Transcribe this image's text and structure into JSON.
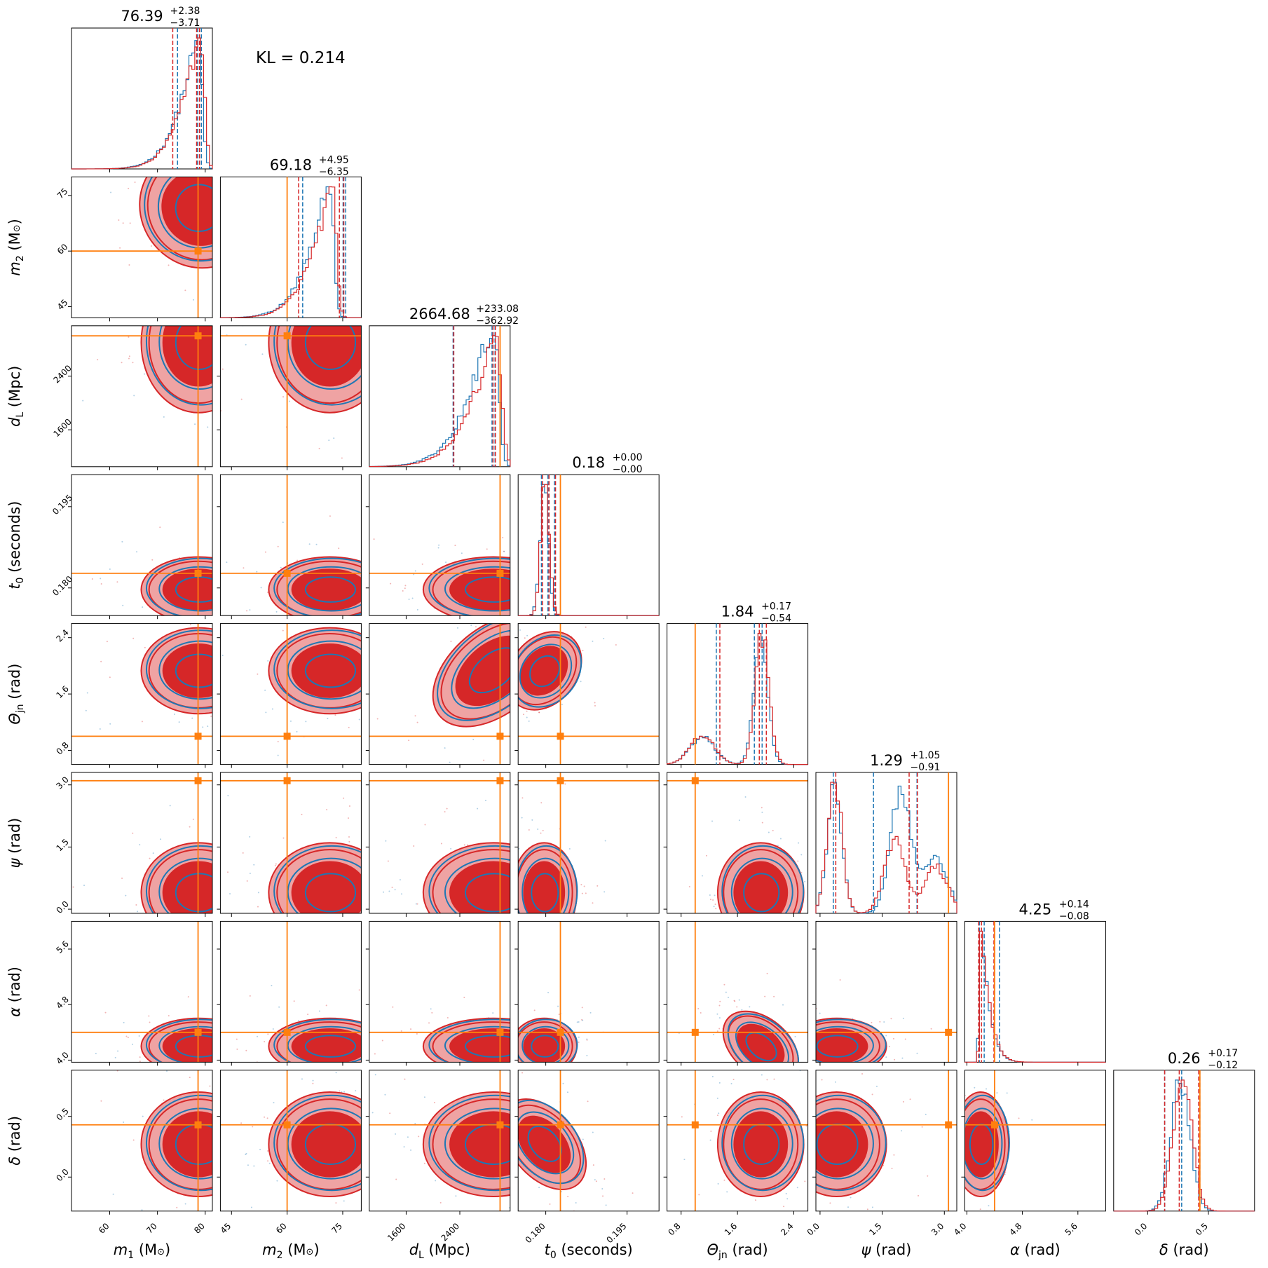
{
  "kl_annotation": "KL = 0.214",
  "colors": {
    "model_a": "#1f77b4",
    "model_b": "#d62728",
    "injection": "#ff7f0e",
    "fill_light": "#efa3a3"
  },
  "chart_data": {
    "type": "corner",
    "series": [
      {
        "color": "#1f77b4"
      },
      {
        "color": "#d62728"
      }
    ],
    "parameters": [
      {
        "key": "m1",
        "label_main": "m",
        "label_sub": "1",
        "label_unit": " (M",
        "label_tail": ")",
        "range": [
          52,
          81.5
        ],
        "ticks": [
          60,
          70,
          80
        ],
        "tick_labels": [
          "60",
          "70",
          "80"
        ],
        "injection": 78.5,
        "posterior_peak": 78.6,
        "posterior_width": 3.2,
        "skew": "left",
        "quantiles_b": [
          73.2,
          78.2,
          78.8
        ],
        "quantiles_a": [
          74.2,
          78.4,
          79.2
        ],
        "title_median": "76.39",
        "title_plus": "+2.38",
        "title_minus": "−3.71"
      },
      {
        "key": "m2",
        "label_main": "m",
        "label_sub": "2",
        "label_unit": " (M",
        "label_tail": ")",
        "range": [
          42,
          80
        ],
        "ticks": [
          45,
          60,
          75
        ],
        "tick_labels": [
          "45",
          "60",
          "75"
        ],
        "injection": 60,
        "posterior_peak": 71.5,
        "posterior_width": 4.5,
        "skew": "left",
        "quantiles_b": [
          63.1,
          74.1,
          75.3
        ],
        "quantiles_a": [
          64.2,
          75.1,
          75.8
        ],
        "title_median": "69.18",
        "title_plus": "+4.95",
        "title_minus": "−6.35"
      },
      {
        "key": "dL",
        "label_main": "d",
        "label_sub": "L",
        "label_unit": " (Mpc)",
        "label_tail": "",
        "range": [
          1050,
          3150
        ],
        "ticks": [
          1600,
          2400
        ],
        "tick_labels": [
          "1600",
          "2400"
        ],
        "injection": 3000,
        "posterior_peak": 2900,
        "posterior_width": 300,
        "skew": "left",
        "quantiles_b": [
          2310,
          2895,
          2930
        ],
        "quantiles_a": [
          2300,
          2880,
          2925
        ],
        "title_median": "2664.68",
        "title_plus": "+233.08",
        "title_minus": "−362.92"
      },
      {
        "key": "t0",
        "label_main": "t",
        "label_sub": "0",
        "label_unit": " (seconds)",
        "label_tail": "",
        "range": [
          0.1749,
          0.2009
        ],
        "ticks": [
          0.18,
          0.195
        ],
        "tick_labels": [
          "0.180",
          "0.195"
        ],
        "injection": 0.1827,
        "posterior_peak": 0.1797,
        "posterior_width": 0.0011,
        "skew": "none",
        "quantiles_b": [
          0.1794,
          0.1806,
          0.1818
        ],
        "quantiles_a": [
          0.1792,
          0.1804,
          0.1816
        ],
        "title_median": "0.18",
        "title_plus": "+0.00",
        "title_minus": "−0.00"
      },
      {
        "key": "theta",
        "label_main": "Θ",
        "label_sub": "jn",
        "label_unit": " (rad)",
        "label_tail": "",
        "range": [
          0.6,
          2.6
        ],
        "ticks": [
          0.8,
          1.6,
          2.4
        ],
        "tick_labels": [
          "0.8",
          "1.6",
          "2.4"
        ],
        "injection": 1.0,
        "posterior_peak": 1.93,
        "posterior_width": 0.14,
        "skew": "bimodal",
        "quantiles_b": [
          1.35,
          1.91,
          2.01
        ],
        "quantiles_a": [
          1.3,
          1.84,
          1.95
        ],
        "title_median": "1.84",
        "title_plus": "+0.17",
        "title_minus": "−0.54"
      },
      {
        "key": "psi",
        "label_main": "ψ",
        "label_sub": "",
        "label_unit": " (rad)",
        "label_tail": "",
        "range": [
          -0.1,
          3.3
        ],
        "ticks": [
          0.0,
          1.5,
          3.0
        ],
        "tick_labels": [
          "0.0",
          "1.5",
          "3.0"
        ],
        "injection": 3.1,
        "posterior_peak": 0.4,
        "posterior_width": 0.3,
        "skew": "multimodal",
        "quantiles_b": [
          0.38,
          2.15,
          2.35
        ],
        "quantiles_a": [
          0.32,
          1.29,
          2.34
        ],
        "title_median": "1.29",
        "title_plus": "+1.05",
        "title_minus": "−0.91"
      },
      {
        "key": "alpha",
        "label_main": "α",
        "label_sub": "",
        "label_unit": " (rad)",
        "label_tail": "",
        "range": [
          3.97,
          6.0
        ],
        "ticks": [
          4.0,
          4.8,
          5.6
        ],
        "tick_labels": [
          "4.0",
          "4.8",
          "5.6"
        ],
        "injection": 4.4,
        "posterior_peak": 4.2,
        "posterior_width": 0.06,
        "skew": "right",
        "quantiles_b": [
          4.17,
          4.21,
          4.39
        ],
        "quantiles_a": [
          4.18,
          4.25,
          4.47
        ],
        "title_median": "4.25",
        "title_plus": "+0.14",
        "title_minus": "−0.08"
      },
      {
        "key": "delta",
        "label_main": "δ",
        "label_sub": "",
        "label_unit": " (rad)",
        "label_tail": "",
        "range": [
          -0.28,
          0.88
        ],
        "ticks": [
          0.0,
          0.5
        ],
        "tick_labels": [
          "0.0",
          "0.5"
        ],
        "injection": 0.43,
        "posterior_peak": 0.27,
        "posterior_width": 0.11,
        "skew": "none",
        "quantiles_b": [
          0.14,
          0.26,
          0.42
        ],
        "quantiles_a": [
          0.14,
          0.28,
          0.43
        ],
        "title_median": "0.26",
        "title_plus": "+0.17",
        "title_minus": "−0.12"
      }
    ]
  }
}
